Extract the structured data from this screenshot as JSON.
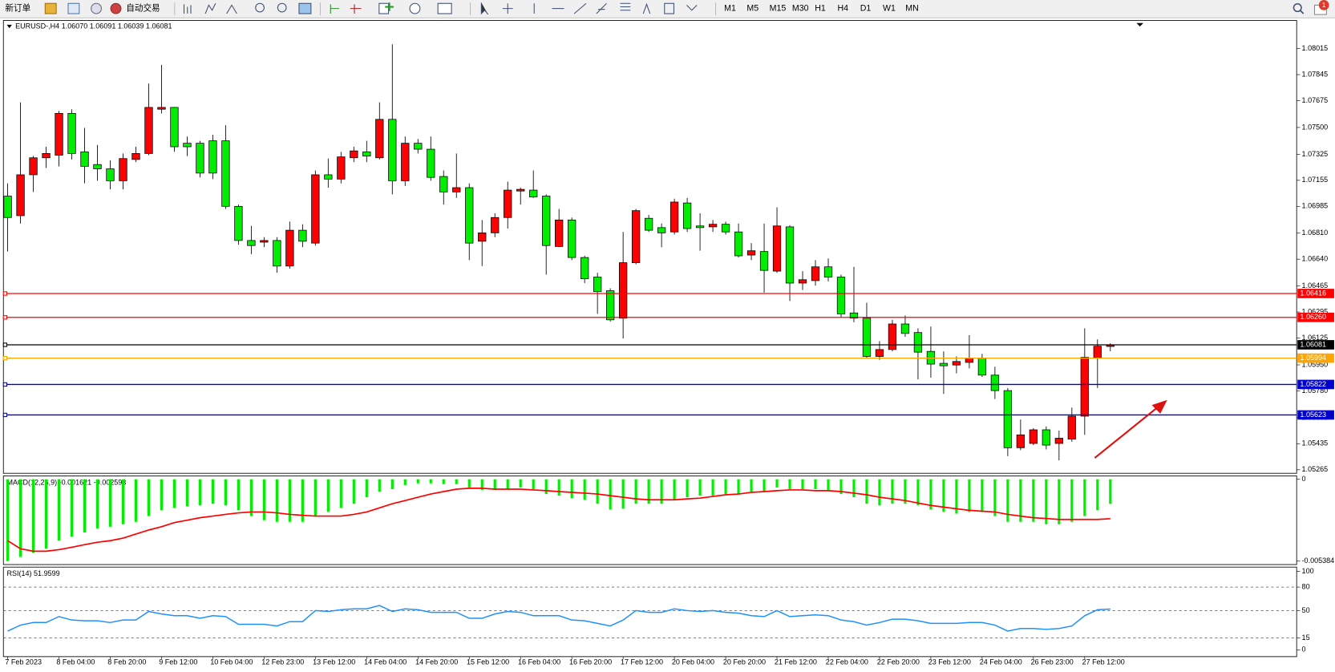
{
  "toolbar": {
    "new_order": "新订单",
    "auto_trading": "自动交易",
    "timeframes": [
      "M1",
      "M5",
      "M15",
      "M30",
      "H1",
      "H4",
      "D1",
      "W1",
      "MN"
    ],
    "notification_count": "1"
  },
  "chart": {
    "header": "EURUSD-,H4  1.06070 1.06091 1.06039 1.06081",
    "ylim": [
      1.05242,
      1.08193
    ],
    "yticks": [
      1.08015,
      1.07845,
      1.07675,
      {
        "value": 1.075,
        "label": "1.07500"
      },
      1.07325,
      1.07155,
      1.06985,
      {
        "value": 1.0681,
        "label": "1.06810"
      },
      {
        "value": 1.0664,
        "label": "1.06640"
      },
      1.06465,
      1.06295,
      1.06125,
      {
        "value": 1.0595,
        "label": "1.05950"
      },
      {
        "value": 1.0578,
        "label": "1.05780"
      },
      1.05605,
      1.05435,
      1.05265
    ],
    "levels": [
      {
        "value": 1.06416,
        "color": "#ff0000"
      },
      {
        "value": 1.0626,
        "label": "1.06260",
        "color": "#ff0000"
      },
      {
        "value": 1.06081,
        "color": "#000000"
      },
      {
        "value": 1.05994,
        "color": "#ffa500"
      },
      {
        "value": 1.05822,
        "color": "#0000cc"
      },
      {
        "value": 1.05623,
        "color": "#0000cc"
      }
    ],
    "up_color": "#ff0000",
    "down_color": "#00ee00",
    "candles": [
      [
        1.07052,
        1.07135,
        1.0669,
        1.06912
      ],
      [
        1.06924,
        1.07664,
        1.06873,
        1.07191
      ],
      [
        1.07191,
        1.07313,
        1.07079,
        1.07302
      ],
      [
        1.07302,
        1.07374,
        1.07235,
        1.0733
      ],
      [
        1.07319,
        1.07608,
        1.07246,
        1.07592
      ],
      [
        1.07592,
        1.07619,
        1.07291,
        1.0733
      ],
      [
        1.07341,
        1.07497,
        1.07135,
        1.07246
      ],
      [
        1.07258,
        1.07386,
        1.07152,
        1.0723
      ],
      [
        1.0723,
        1.07285,
        1.07096,
        1.07152
      ],
      [
        1.07152,
        1.0733,
        1.07096,
        1.07297
      ],
      [
        1.07291,
        1.07374,
        1.07274,
        1.0733
      ],
      [
        1.0733,
        1.07786,
        1.07319,
        1.07631
      ],
      [
        1.07619,
        1.07909,
        1.07592,
        1.07631
      ],
      [
        1.07631,
        1.07631,
        1.07341,
        1.07374
      ],
      [
        1.07397,
        1.07441,
        1.07313,
        1.07374
      ],
      [
        1.07397,
        1.07413,
        1.07174,
        1.07202
      ],
      [
        1.07413,
        1.07452,
        1.07163,
        1.07202
      ],
      [
        1.07413,
        1.07514,
        1.06968,
        1.06985
      ],
      [
        1.06985,
        1.06996,
        1.06734,
        1.06762
      ],
      [
        1.06762,
        1.06857,
        1.06673,
        1.06729
      ],
      [
        1.06751,
        1.06784,
        1.06718,
        1.06762
      ],
      [
        1.06762,
        1.06784,
        1.06551,
        1.06595
      ],
      [
        1.06595,
        1.06885,
        1.06578,
        1.06829
      ],
      [
        1.06829,
        1.06868,
        1.06718,
        1.06757
      ],
      [
        1.06745,
        1.07219,
        1.06729,
        1.07191
      ],
      [
        1.07191,
        1.07297,
        1.07107,
        1.07163
      ],
      [
        1.07163,
        1.07341,
        1.07135,
        1.07308
      ],
      [
        1.07302,
        1.07374,
        1.07274,
        1.07347
      ],
      [
        1.07341,
        1.07413,
        1.07274,
        1.07313
      ],
      [
        1.07302,
        1.07664,
        1.07291,
        1.07553
      ],
      [
        1.07553,
        1.08043,
        1.07063,
        1.07152
      ],
      [
        1.07152,
        1.07441,
        1.07118,
        1.07397
      ],
      [
        1.07397,
        1.07425,
        1.0733,
        1.07358
      ],
      [
        1.07358,
        1.07441,
        1.07152,
        1.07174
      ],
      [
        1.0718,
        1.07219,
        1.06996,
        1.07079
      ],
      [
        1.07079,
        1.0733,
        1.0704,
        1.07107
      ],
      [
        1.07107,
        1.07135,
        1.06634,
        1.06745
      ],
      [
        1.06757,
        1.06896,
        1.06595,
        1.06812
      ],
      [
        1.06812,
        1.0694,
        1.06784,
        1.06912
      ],
      [
        1.06912,
        1.07146,
        1.0684,
        1.07091
      ],
      [
        1.07085,
        1.07107,
        1.06996,
        1.07096
      ],
      [
        1.07091,
        1.07219,
        1.0704,
        1.07046
      ],
      [
        1.07052,
        1.07063,
        1.06539,
        1.06729
      ],
      [
        1.06723,
        1.06968,
        1.06718,
        1.06896
      ],
      [
        1.06896,
        1.06912,
        1.06634,
        1.06651
      ],
      [
        1.06651,
        1.06662,
        1.06484,
        1.06512
      ],
      [
        1.06523,
        1.06551,
        1.06283,
        1.06428
      ],
      [
        1.06434,
        1.0645,
        1.06233,
        1.06244
      ],
      [
        1.06255,
        1.06818,
        1.06122,
        1.06617
      ],
      [
        1.06617,
        1.06968,
        1.06606,
        1.06957
      ],
      [
        1.06907,
        1.06929,
        1.06818,
        1.06829
      ],
      [
        1.06846,
        1.06873,
        1.06718,
        1.06812
      ],
      [
        1.06818,
        1.07035,
        1.06801,
        1.07013
      ],
      [
        1.07007,
        1.0704,
        1.06818,
        1.0684
      ],
      [
        1.06857,
        1.0694,
        1.06695,
        1.06846
      ],
      [
        1.06851,
        1.06896,
        1.06818,
        1.06868
      ],
      [
        1.06868,
        1.06885,
        1.06801,
        1.06818
      ],
      [
        1.06818,
        1.06873,
        1.06651,
        1.06662
      ],
      [
        1.06667,
        1.06745,
        1.06634,
        1.06695
      ],
      [
        1.0669,
        1.06873,
        1.06422,
        1.06567
      ],
      [
        1.06562,
        1.06979,
        1.06551,
        1.06857
      ],
      [
        1.06851,
        1.06862,
        1.06367,
        1.06484
      ],
      [
        1.06484,
        1.06562,
        1.06439,
        1.06506
      ],
      [
        1.065,
        1.06634,
        1.06467,
        1.0659
      ],
      [
        1.0659,
        1.06645,
        1.06495,
        1.06523
      ],
      [
        1.06523,
        1.06539,
        1.06261,
        1.06283
      ],
      [
        1.06289,
        1.0659,
        1.06228,
        1.06255
      ],
      [
        1.06255,
        1.06356,
        1.05994,
        1.06005
      ],
      [
        1.06005,
        1.06105,
        1.05983,
        1.0605
      ],
      [
        1.0605,
        1.06244,
        1.06038,
        1.06217
      ],
      [
        1.06217,
        1.06272,
        1.06133,
        1.06155
      ],
      [
        1.06161,
        1.06189,
        1.05855,
        1.06033
      ],
      [
        1.06038,
        1.062,
        1.05866,
        1.05955
      ],
      [
        1.0596,
        1.06038,
        1.0576,
        1.05944
      ],
      [
        1.05949,
        1.06005,
        1.05894,
        1.05972
      ],
      [
        1.05966,
        1.06144,
        1.05927,
        1.05994
      ],
      [
        1.05994,
        1.06022,
        1.05871,
        1.05883
      ],
      [
        1.05883,
        1.05938,
        1.05727,
        1.05782
      ],
      [
        1.05782,
        1.05799,
        1.05354,
        1.05409
      ],
      [
        1.05409,
        1.05593,
        1.05393,
        1.05493
      ],
      [
        1.05437,
        1.05537,
        1.05426,
        1.05526
      ],
      [
        1.05526,
        1.05548,
        1.05398,
        1.05426
      ],
      [
        1.05437,
        1.05521,
        1.05326,
        1.05471
      ],
      [
        1.05465,
        1.05671,
        1.05448,
        1.05615
      ],
      [
        1.05615,
        1.06189,
        1.05493,
        1.05999
      ],
      [
        1.05994,
        1.06116,
        1.05799,
        1.06072
      ],
      [
        1.0607,
        1.06091,
        1.06039,
        1.06081
      ]
    ]
  },
  "macd": {
    "label": "MACD(12,26,9) -0.001621 -0.002593",
    "ylim": [
      -0.005384,
      0
    ],
    "yticks": [
      0,
      -0.005384
    ],
    "histogram_color": "#00ee00",
    "signal_color": "#ff0000",
    "histogram": [
      -0.00538,
      -0.00511,
      -0.00484,
      -0.00457,
      -0.00404,
      -0.00377,
      -0.0035,
      -0.00323,
      -0.00312,
      -0.00296,
      -0.0028,
      -0.00242,
      -0.00204,
      -0.00188,
      -0.00178,
      -0.00172,
      -0.00161,
      -0.00172,
      -0.00204,
      -0.00242,
      -0.00269,
      -0.0028,
      -0.0028,
      -0.0028,
      -0.00242,
      -0.00215,
      -0.00188,
      -0.00161,
      -0.00118,
      -0.00081,
      -0.00065,
      -0.00038,
      -0.00027,
      -0.00027,
      -0.00032,
      -0.00032,
      -0.00054,
      -0.0007,
      -0.0007,
      -0.00065,
      -0.00054,
      -0.00065,
      -0.00097,
      -0.00108,
      -0.00124,
      -0.00135,
      -0.00161,
      -0.00199,
      -0.00194,
      -0.00161,
      -0.00161,
      -0.00161,
      -0.00135,
      -0.00118,
      -0.00108,
      -0.00108,
      -0.00097,
      -0.00097,
      -0.00081,
      -0.00081,
      -0.00054,
      -0.00065,
      -0.00065,
      -0.00065,
      -0.0007,
      -0.00097,
      -0.00118,
      -0.00161,
      -0.00172,
      -0.00161,
      -0.00161,
      -0.00172,
      -0.00199,
      -0.00215,
      -0.00226,
      -0.00215,
      -0.00215,
      -0.00242,
      -0.0028,
      -0.0028,
      -0.0028,
      -0.00296,
      -0.00296,
      -0.0028,
      -0.00242,
      -0.00204,
      -0.001621
    ],
    "signal": [
      -0.00404,
      -0.00457,
      -0.00473,
      -0.00473,
      -0.00463,
      -0.00447,
      -0.0043,
      -0.00414,
      -0.00404,
      -0.00387,
      -0.0036,
      -0.00334,
      -0.00312,
      -0.00285,
      -0.00269,
      -0.00253,
      -0.00242,
      -0.00231,
      -0.00221,
      -0.00215,
      -0.00215,
      -0.00221,
      -0.00231,
      -0.00237,
      -0.00242,
      -0.00242,
      -0.00242,
      -0.00231,
      -0.00215,
      -0.00188,
      -0.00161,
      -0.0014,
      -0.00118,
      -0.00097,
      -0.00081,
      -0.00065,
      -0.00059,
      -0.00059,
      -0.00065,
      -0.00065,
      -0.00065,
      -0.0007,
      -0.00075,
      -0.00081,
      -0.00086,
      -0.00091,
      -0.00097,
      -0.00108,
      -0.00118,
      -0.00129,
      -0.00135,
      -0.00135,
      -0.00135,
      -0.00129,
      -0.00124,
      -0.00113,
      -0.00102,
      -0.00097,
      -0.00086,
      -0.00081,
      -0.00075,
      -0.0007,
      -0.0007,
      -0.00075,
      -0.00075,
      -0.00081,
      -0.00091,
      -0.00102,
      -0.00118,
      -0.00129,
      -0.0014,
      -0.00156,
      -0.00172,
      -0.00183,
      -0.00194,
      -0.00204,
      -0.0021,
      -0.00215,
      -0.00231,
      -0.00242,
      -0.00253,
      -0.00258,
      -0.00264,
      -0.00264,
      -0.00264,
      -0.00264,
      -0.002593
    ]
  },
  "rsi": {
    "label": "RSI(14) 51.9599",
    "ylim": [
      0,
      100
    ],
    "yticks": [
      100,
      80,
      50,
      15,
      0
    ],
    "levels": [
      80,
      50,
      15
    ],
    "color": "#1e90ff",
    "values": [
      23.9,
      31.5,
      34.8,
      34.8,
      42.4,
      38.0,
      37.0,
      37.0,
      34.8,
      38.0,
      38.0,
      48.9,
      45.7,
      43.5,
      43.5,
      40.2,
      43.5,
      42.4,
      32.6,
      32.6,
      32.6,
      30.4,
      35.9,
      35.9,
      50.0,
      48.9,
      51.1,
      52.2,
      52.2,
      56.5,
      48.9,
      52.2,
      51.1,
      47.8,
      47.8,
      47.8,
      40.2,
      40.2,
      45.7,
      48.9,
      47.8,
      43.5,
      43.5,
      43.5,
      38.0,
      37.0,
      33.7,
      30.4,
      38.0,
      50.0,
      47.8,
      47.8,
      52.2,
      50.0,
      48.9,
      50.0,
      47.8,
      46.7,
      43.5,
      42.4,
      50.0,
      42.4,
      43.5,
      44.6,
      43.5,
      38.0,
      35.9,
      31.5,
      34.8,
      39.1,
      39.1,
      37.0,
      33.7,
      33.7,
      33.7,
      34.8,
      34.8,
      31.5,
      23.9,
      27.2,
      27.2,
      26.1,
      27.2,
      30.4,
      43.5,
      51.1,
      51.9599
    ]
  },
  "time_labels": [
    "7 Feb 2023",
    "8 Feb 04:00",
    "8 Feb 20:00",
    "9 Feb 12:00",
    "10 Feb 04:00",
    "12 Feb 23:00",
    "13 Feb 12:00",
    "14 Feb 04:00",
    "14 Feb 20:00",
    "15 Feb 12:00",
    "16 Feb 04:00",
    "16 Feb 20:00",
    "17 Feb 12:00",
    "20 Feb 04:00",
    "20 Feb 20:00",
    "21 Feb 12:00",
    "22 Feb 04:00",
    "22 Feb 20:00",
    "23 Feb 12:00",
    "24 Feb 04:00",
    "26 Feb 23:00",
    "27 Feb 12:00"
  ]
}
